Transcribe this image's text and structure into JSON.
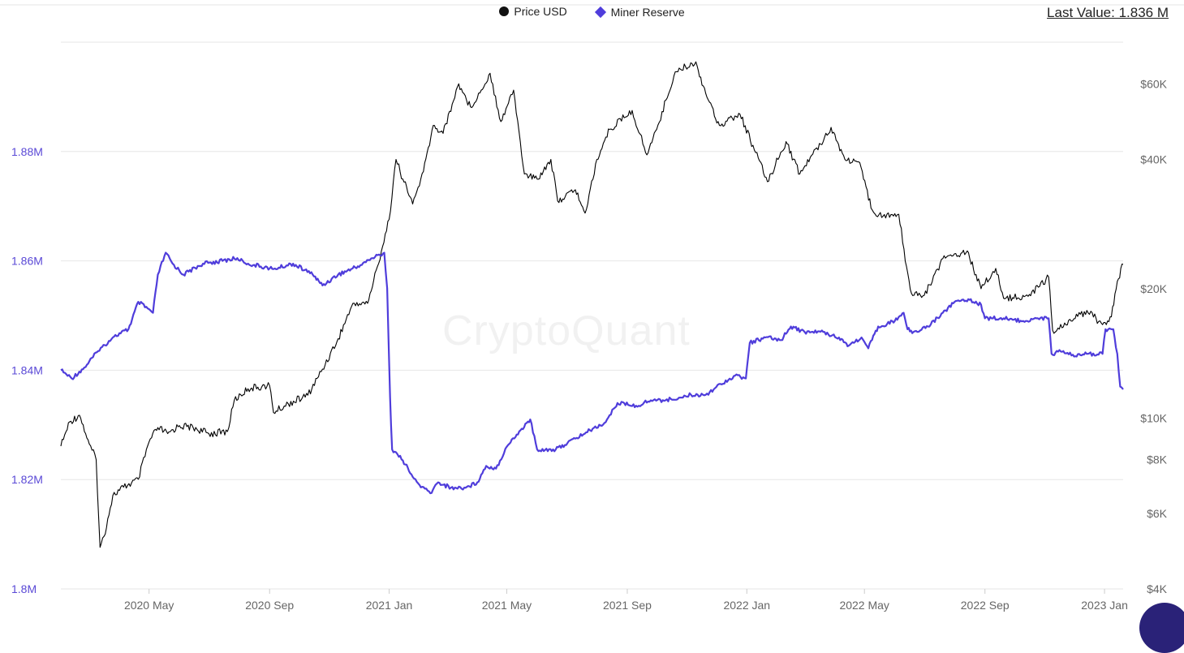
{
  "legend": {
    "price_label": "Price USD",
    "reserve_label": "Miner Reserve"
  },
  "header": {
    "last_value": "Last Value: 1.836 M"
  },
  "watermark": "CryptoQuant",
  "colors": {
    "price": "#000000",
    "reserve": "#4f3ddb",
    "grid": "#e6e6e6",
    "axis_text": "#666666",
    "reserve_axis_text": "#5a49d6"
  },
  "chart_data": {
    "type": "line",
    "x_range": [
      "2020-02-01",
      "2023-01-20"
    ],
    "x_ticks": [
      {
        "date": "2020-05-01",
        "label": "2020 May"
      },
      {
        "date": "2020-09-01",
        "label": "2020 Sep"
      },
      {
        "date": "2021-01-01",
        "label": "2021 Jan"
      },
      {
        "date": "2021-05-01",
        "label": "2021 May"
      },
      {
        "date": "2021-09-01",
        "label": "2021 Sep"
      },
      {
        "date": "2022-01-01",
        "label": "2022 Jan"
      },
      {
        "date": "2022-05-01",
        "label": "2022 May"
      },
      {
        "date": "2022-09-01",
        "label": "2022 Sep"
      },
      {
        "date": "2023-01-01",
        "label": "2023 Jan"
      }
    ],
    "y_left": {
      "min": 1.8,
      "max": 1.9,
      "scale": "linear",
      "ticks": [
        {
          "value": 1.8,
          "label": "1.8M"
        },
        {
          "value": 1.82,
          "label": "1.82M"
        },
        {
          "value": 1.84,
          "label": "1.84M"
        },
        {
          "value": 1.86,
          "label": "1.86M"
        },
        {
          "value": 1.88,
          "label": "1.88M"
        }
      ]
    },
    "y_right": {
      "min": 4000,
      "max": 75000,
      "scale": "log",
      "ticks": [
        {
          "value": 4000,
          "label": "$4K"
        },
        {
          "value": 6000,
          "label": "$6K"
        },
        {
          "value": 8000,
          "label": "$8K"
        },
        {
          "value": 10000,
          "label": "$10K"
        },
        {
          "value": 20000,
          "label": "$20K"
        },
        {
          "value": 40000,
          "label": "$40K"
        },
        {
          "value": 60000,
          "label": "$60K"
        }
      ]
    },
    "grid": true,
    "legend_position": "top-center",
    "series": [
      {
        "name": "Price USD",
        "axis": "right",
        "points": [
          [
            "2020-02-01",
            8600
          ],
          [
            "2020-02-10",
            9800
          ],
          [
            "2020-02-20",
            10150
          ],
          [
            "2020-03-01",
            8700
          ],
          [
            "2020-03-08",
            8000
          ],
          [
            "2020-03-12",
            5000
          ],
          [
            "2020-03-16",
            5300
          ],
          [
            "2020-03-25",
            6600
          ],
          [
            "2020-04-05",
            6900
          ],
          [
            "2020-04-20",
            7200
          ],
          [
            "2020-05-01",
            8800
          ],
          [
            "2020-05-10",
            9500
          ],
          [
            "2020-05-20",
            9200
          ],
          [
            "2020-06-01",
            9600
          ],
          [
            "2020-06-15",
            9500
          ],
          [
            "2020-07-01",
            9200
          ],
          [
            "2020-07-20",
            9300
          ],
          [
            "2020-07-27",
            11000
          ],
          [
            "2020-08-10",
            11700
          ],
          [
            "2020-08-20",
            11800
          ],
          [
            "2020-09-01",
            11900
          ],
          [
            "2020-09-05",
            10300
          ],
          [
            "2020-09-20",
            10800
          ],
          [
            "2020-10-10",
            11300
          ],
          [
            "2020-10-25",
            13000
          ],
          [
            "2020-11-10",
            15300
          ],
          [
            "2020-11-25",
            18500
          ],
          [
            "2020-12-10",
            18500
          ],
          [
            "2020-12-20",
            22500
          ],
          [
            "2021-01-01",
            29000
          ],
          [
            "2021-01-08",
            40000
          ],
          [
            "2021-01-15",
            36000
          ],
          [
            "2021-01-25",
            31500
          ],
          [
            "2021-02-05",
            37500
          ],
          [
            "2021-02-15",
            48000
          ],
          [
            "2021-02-25",
            46000
          ],
          [
            "2021-03-13",
            60000
          ],
          [
            "2021-03-25",
            53000
          ],
          [
            "2021-04-05",
            58000
          ],
          [
            "2021-04-14",
            63500
          ],
          [
            "2021-04-25",
            49000
          ],
          [
            "2021-05-08",
            58000
          ],
          [
            "2021-05-19",
            37000
          ],
          [
            "2021-06-01",
            36000
          ],
          [
            "2021-06-15",
            40000
          ],
          [
            "2021-06-22",
            32000
          ],
          [
            "2021-07-10",
            34000
          ],
          [
            "2021-07-20",
            30000
          ],
          [
            "2021-08-01",
            40000
          ],
          [
            "2021-08-14",
            47000
          ],
          [
            "2021-09-06",
            52000
          ],
          [
            "2021-09-21",
            41000
          ],
          [
            "2021-10-01",
            47000
          ],
          [
            "2021-10-20",
            64000
          ],
          [
            "2021-11-10",
            67500
          ],
          [
            "2021-11-20",
            57000
          ],
          [
            "2021-12-04",
            48000
          ],
          [
            "2021-12-25",
            51000
          ],
          [
            "2022-01-10",
            41500
          ],
          [
            "2022-01-22",
            35500
          ],
          [
            "2022-02-10",
            44000
          ],
          [
            "2022-02-24",
            37000
          ],
          [
            "2022-03-28",
            47500
          ],
          [
            "2022-04-11",
            40000
          ],
          [
            "2022-04-25",
            39500
          ],
          [
            "2022-05-09",
            30500
          ],
          [
            "2022-05-20",
            29500
          ],
          [
            "2022-06-05",
            29800
          ],
          [
            "2022-06-13",
            22500
          ],
          [
            "2022-06-18",
            19500
          ],
          [
            "2022-07-01",
            19300
          ],
          [
            "2022-07-20",
            23500
          ],
          [
            "2022-08-14",
            24500
          ],
          [
            "2022-08-28",
            20000
          ],
          [
            "2022-09-12",
            22300
          ],
          [
            "2022-09-20",
            19000
          ],
          [
            "2022-10-15",
            19200
          ],
          [
            "2022-11-05",
            21300
          ],
          [
            "2022-11-09",
            16000
          ],
          [
            "2022-11-20",
            16300
          ],
          [
            "2022-12-14",
            17800
          ],
          [
            "2022-12-30",
            16500
          ],
          [
            "2023-01-08",
            17200
          ],
          [
            "2023-01-14",
            20800
          ],
          [
            "2023-01-20",
            22800
          ]
        ]
      },
      {
        "name": "Miner Reserve",
        "axis": "left",
        "points": [
          [
            "2020-02-01",
            1.84
          ],
          [
            "2020-02-12",
            1.8385
          ],
          [
            "2020-02-25",
            1.8405
          ],
          [
            "2020-03-10",
            1.8435
          ],
          [
            "2020-03-25",
            1.846
          ],
          [
            "2020-04-10",
            1.8475
          ],
          [
            "2020-04-20",
            1.8525
          ],
          [
            "2020-05-05",
            1.8505
          ],
          [
            "2020-05-10",
            1.8575
          ],
          [
            "2020-05-18",
            1.8615
          ],
          [
            "2020-05-25",
            1.8595
          ],
          [
            "2020-06-05",
            1.8575
          ],
          [
            "2020-06-25",
            1.8595
          ],
          [
            "2020-07-15",
            1.86
          ],
          [
            "2020-07-30",
            1.8605
          ],
          [
            "2020-08-10",
            1.8595
          ],
          [
            "2020-09-05",
            1.8585
          ],
          [
            "2020-09-25",
            1.8595
          ],
          [
            "2020-10-15",
            1.8575
          ],
          [
            "2020-10-25",
            1.8555
          ],
          [
            "2020-11-10",
            1.8575
          ],
          [
            "2020-11-30",
            1.859
          ],
          [
            "2020-12-15",
            1.8605
          ],
          [
            "2020-12-27",
            1.8615
          ],
          [
            "2020-12-30",
            1.855
          ],
          [
            "2021-01-02",
            1.835
          ],
          [
            "2021-01-04",
            1.8255
          ],
          [
            "2021-01-15",
            1.8235
          ],
          [
            "2021-01-25",
            1.8205
          ],
          [
            "2021-02-01",
            1.819
          ],
          [
            "2021-02-12",
            1.8175
          ],
          [
            "2021-02-20",
            1.8195
          ],
          [
            "2021-03-05",
            1.8185
          ],
          [
            "2021-03-20",
            1.8185
          ],
          [
            "2021-04-01",
            1.8195
          ],
          [
            "2021-04-10",
            1.8225
          ],
          [
            "2021-04-20",
            1.822
          ],
          [
            "2021-05-01",
            1.826
          ],
          [
            "2021-05-15",
            1.829
          ],
          [
            "2021-05-25",
            1.831
          ],
          [
            "2021-06-01",
            1.8255
          ],
          [
            "2021-06-20",
            1.8255
          ],
          [
            "2021-07-10",
            1.8275
          ],
          [
            "2021-07-25",
            1.829
          ],
          [
            "2021-08-10",
            1.8305
          ],
          [
            "2021-08-22",
            1.834
          ],
          [
            "2021-09-10",
            1.8335
          ],
          [
            "2021-09-25",
            1.8345
          ],
          [
            "2021-10-10",
            1.8345
          ],
          [
            "2021-10-25",
            1.835
          ],
          [
            "2021-11-05",
            1.8355
          ],
          [
            "2021-11-20",
            1.8355
          ],
          [
            "2021-12-05",
            1.8375
          ],
          [
            "2021-12-20",
            1.839
          ],
          [
            "2021-12-31",
            1.8385
          ],
          [
            "2022-01-04",
            1.845
          ],
          [
            "2022-01-20",
            1.846
          ],
          [
            "2022-02-05",
            1.8455
          ],
          [
            "2022-02-15",
            1.848
          ],
          [
            "2022-03-01",
            1.847
          ],
          [
            "2022-03-20",
            1.847
          ],
          [
            "2022-04-05",
            1.846
          ],
          [
            "2022-04-15",
            1.8445
          ],
          [
            "2022-04-28",
            1.846
          ],
          [
            "2022-05-05",
            1.844
          ],
          [
            "2022-05-15",
            1.848
          ],
          [
            "2022-06-01",
            1.849
          ],
          [
            "2022-06-10",
            1.8505
          ],
          [
            "2022-06-14",
            1.8475
          ],
          [
            "2022-06-20",
            1.847
          ],
          [
            "2022-07-05",
            1.848
          ],
          [
            "2022-07-20",
            1.8505
          ],
          [
            "2022-08-01",
            1.8525
          ],
          [
            "2022-08-15",
            1.853
          ],
          [
            "2022-08-28",
            1.852
          ],
          [
            "2022-09-01",
            1.8495
          ],
          [
            "2022-09-20",
            1.8495
          ],
          [
            "2022-10-10",
            1.849
          ],
          [
            "2022-10-25",
            1.8495
          ],
          [
            "2022-11-05",
            1.8495
          ],
          [
            "2022-11-08",
            1.843
          ],
          [
            "2022-11-20",
            1.8435
          ],
          [
            "2022-12-01",
            1.8425
          ],
          [
            "2022-12-15",
            1.843
          ],
          [
            "2022-12-30",
            1.843
          ],
          [
            "2023-01-02",
            1.8475
          ],
          [
            "2023-01-10",
            1.8475
          ],
          [
            "2023-01-14",
            1.843
          ],
          [
            "2023-01-17",
            1.837
          ],
          [
            "2023-01-20",
            1.8365
          ]
        ]
      }
    ]
  }
}
